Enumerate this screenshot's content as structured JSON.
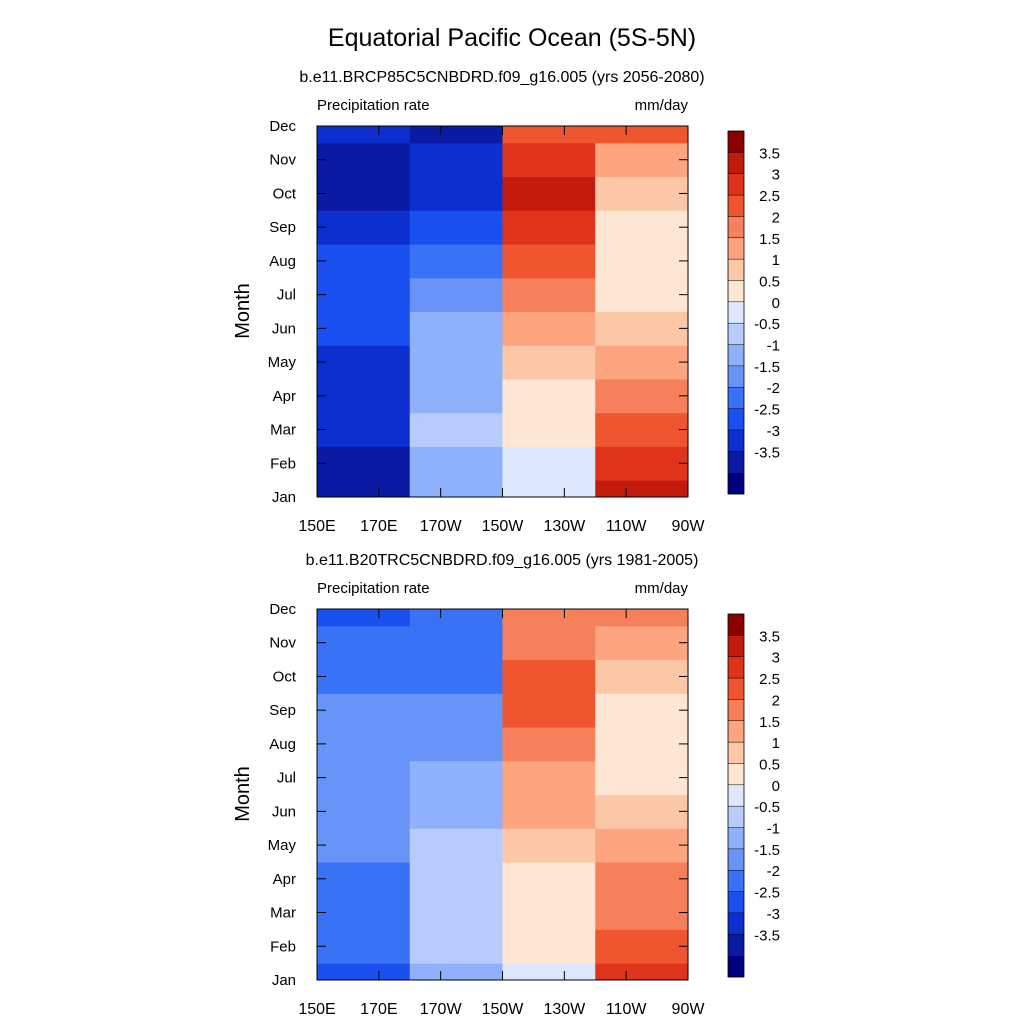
{
  "figure_title": "Equatorial Pacific Ocean (5S-5N)",
  "chart_data": [
    {
      "type": "heatmap",
      "title": "b.e11.BRCP85C5CNBDRD.f09_g16.005 (yrs 2056-2080)",
      "left_label": "Precipitation rate",
      "units": "mm/day",
      "ylabel": "Month",
      "xlabel": "",
      "x_tick_labels": [
        "150E",
        "170E",
        "170W",
        "150W",
        "130W",
        "110W",
        "90W"
      ],
      "x_range_deg_east": [
        150,
        270
      ],
      "y_tick_labels": [
        "Jan",
        "Feb",
        "Mar",
        "Apr",
        "May",
        "Jun",
        "Jul",
        "Aug",
        "Sep",
        "Oct",
        "Nov",
        "Dec"
      ],
      "bands": [
        {
          "months": [
            1,
            2,
            3,
            4,
            5,
            6,
            7,
            8,
            9,
            10,
            11,
            12
          ],
          "values": [
            -3.2,
            -3.1,
            -3.0,
            -2.8,
            -2.6,
            -2.3,
            -2.2,
            -2.4,
            -2.7,
            -3.2,
            -3.4,
            -2.8
          ]
        },
        {
          "months": [
            1,
            2,
            3,
            4,
            5,
            6,
            7,
            8,
            9,
            10,
            11,
            12
          ],
          "values": [
            -0.8,
            -0.7,
            -0.5,
            -0.6,
            -0.8,
            -1.0,
            -1.3,
            -1.8,
            -2.3,
            -2.6,
            -2.9,
            -3.1
          ]
        },
        {
          "months": [
            1,
            2,
            3,
            4,
            5,
            6,
            7,
            8,
            9,
            10,
            11,
            12
          ],
          "values": [
            0.3,
            0.4,
            0.6,
            0.8,
            1.2,
            1.7,
            2.3,
            2.9,
            3.4,
            3.6,
            3.2,
            2.6
          ]
        },
        {
          "months": [
            1,
            2,
            3,
            4,
            5,
            6,
            7,
            8,
            9,
            10,
            11,
            12
          ],
          "values": [
            3.6,
            3.3,
            2.8,
            2.2,
            1.6,
            1.1,
            0.8,
            0.7,
            0.9,
            1.3,
            1.9,
            2.6
          ]
        }
      ],
      "colorbar_labels": [
        "3.5",
        "3",
        "2.5",
        "2",
        "1.5",
        "1",
        "0.5",
        "0",
        "-0.5",
        "-1",
        "-1.5",
        "-2",
        "-2.5",
        "-3",
        "-3.5"
      ]
    },
    {
      "type": "heatmap",
      "title": "b.e11.B20TRC5CNBDRD.f09_g16.005 (yrs 1981-2005)",
      "left_label": "Precipitation rate",
      "units": "mm/day",
      "ylabel": "Month",
      "xlabel": "",
      "x_tick_labels": [
        "150E",
        "170E",
        "170W",
        "150W",
        "130W",
        "110W",
        "90W"
      ],
      "x_range_deg_east": [
        150,
        270
      ],
      "y_tick_labels": [
        "Jan",
        "Feb",
        "Mar",
        "Apr",
        "May",
        "Jun",
        "Jul",
        "Aug",
        "Sep",
        "Oct",
        "Nov",
        "Dec"
      ],
      "bands": [
        {
          "months": [
            1,
            2,
            3,
            4,
            5,
            6,
            7,
            8,
            9,
            10,
            11,
            12
          ],
          "values": [
            -2.2,
            -2.0,
            -1.9,
            -1.7,
            -1.5,
            -1.3,
            -1.2,
            -1.3,
            -1.5,
            -1.8,
            -2.0,
            -2.1
          ]
        },
        {
          "months": [
            1,
            2,
            3,
            4,
            5,
            6,
            7,
            8,
            9,
            10,
            11,
            12
          ],
          "values": [
            -0.6,
            -0.5,
            -0.4,
            -0.4,
            -0.5,
            -0.7,
            -0.9,
            -1.2,
            -1.5,
            -1.7,
            -1.9,
            -2.0
          ]
        },
        {
          "months": [
            1,
            2,
            3,
            4,
            5,
            6,
            7,
            8,
            9,
            10,
            11,
            12
          ],
          "values": [
            0.4,
            0.5,
            0.6,
            0.8,
            1.1,
            1.5,
            1.9,
            2.3,
            2.6,
            2.6,
            2.4,
            2.1
          ]
        },
        {
          "months": [
            1,
            2,
            3,
            4,
            5,
            6,
            7,
            8,
            9,
            10,
            11,
            12
          ],
          "values": [
            3.0,
            2.8,
            2.4,
            2.0,
            1.5,
            1.1,
            0.8,
            0.7,
            0.8,
            1.1,
            1.5,
            2.1
          ]
        }
      ],
      "colorbar_labels": [
        "3.5",
        "3",
        "2.5",
        "2",
        "1.5",
        "1",
        "0.5",
        "0",
        "-0.5",
        "-1",
        "-1.5",
        "-2",
        "-2.5",
        "-3",
        "-3.5"
      ]
    }
  ],
  "palette": [
    "#00007f",
    "#0a1aa3",
    "#0d2fd0",
    "#1a4ff0",
    "#3a72f6",
    "#6894f8",
    "#8fb0fb",
    "#b8ccfc",
    "#dde8fe",
    "#fde6d4",
    "#fcc7a6",
    "#fca580",
    "#f7805c",
    "#ef5630",
    "#e0331b",
    "#c21b0e",
    "#8c0000"
  ]
}
